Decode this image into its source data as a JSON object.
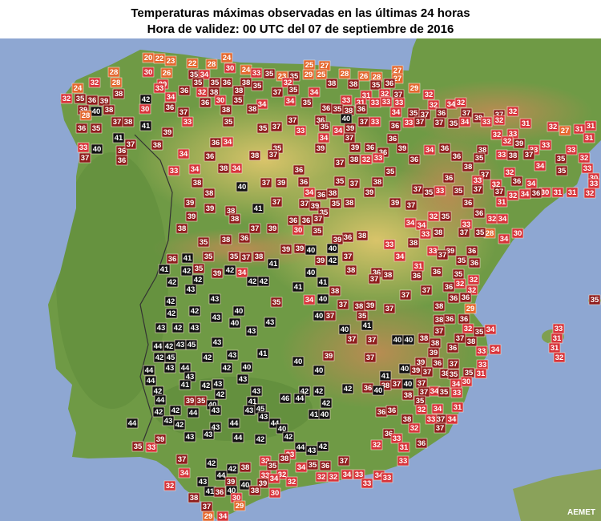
{
  "header": {
    "title": "Temperaturas máximas observadas en las últimas 24 horas",
    "subtitle": "Hora de validez: 00 UTC del 07 de septiembre de 2016"
  },
  "credit": "AEMET",
  "stations": [
    20,
    22,
    23,
    22,
    28,
    24,
    25,
    27,
    27,
    28,
    30,
    26,
    35,
    34,
    30,
    24,
    33,
    35,
    23,
    35,
    29,
    25,
    28,
    26,
    28,
    27,
    32,
    28,
    30,
    35,
    35,
    36,
    38,
    35,
    32,
    38,
    38,
    35,
    36,
    29,
    24,
    33,
    36,
    32,
    38,
    38,
    37,
    35,
    34,
    31,
    32,
    37,
    32,
    32,
    35,
    36,
    39,
    38,
    42,
    34,
    36,
    30,
    35,
    34,
    34,
    35,
    33,
    31,
    33,
    33,
    33,
    32,
    34,
    32,
    39,
    40,
    38,
    30,
    36,
    37,
    38,
    38,
    36,
    35,
    38,
    36,
    34,
    35,
    37,
    36,
    37,
    39,
    37,
    32,
    28,
    37,
    38,
    33,
    35,
    37,
    36,
    40,
    39,
    37,
    33,
    36,
    33,
    37,
    37,
    35,
    34,
    33,
    32,
    31,
    32,
    31,
    36,
    35,
    41,
    39,
    35,
    37,
    33,
    35,
    34,
    37,
    36,
    32,
    33,
    27,
    31,
    31,
    33,
    40,
    41,
    36,
    37,
    38,
    36,
    34,
    35,
    39,
    34,
    39,
    36,
    36,
    39,
    34,
    36,
    38,
    32,
    39,
    33,
    33,
    33,
    37,
    36,
    34,
    36,
    38,
    37,
    37,
    38,
    32,
    33,
    36,
    36,
    38,
    35,
    33,
    38,
    37,
    34,
    35,
    32,
    33,
    30,
    33,
    34,
    38,
    34,
    36,
    35,
    37,
    32,
    35,
    38,
    40,
    37,
    39,
    36,
    35,
    37,
    38,
    36,
    33,
    32,
    36,
    34,
    30,
    31,
    31,
    33,
    32,
    38,
    34,
    36,
    38,
    39,
    37,
    35,
    33,
    35,
    37,
    37,
    39,
    39,
    38,
    41,
    37,
    37,
    39,
    35,
    35,
    38,
    39,
    37,
    36,
    36,
    31,
    32,
    34,
    36,
    39,
    38,
    36,
    36,
    37,
    32,
    35,
    34,
    34,
    33,
    32,
    34,
    28,
    30,
    34,
    38,
    37,
    39,
    30,
    35,
    36,
    38,
    33,
    38,
    37,
    35,
    35,
    38,
    36,
    39,
    39,
    33,
    38,
    33,
    39,
    36,
    36,
    41,
    35,
    35,
    37,
    38,
    39,
    40,
    40,
    39,
    42,
    37,
    34,
    37,
    35,
    36,
    41,
    42,
    35,
    39,
    42,
    34,
    41,
    40,
    38,
    36,
    38,
    31,
    36,
    36,
    35,
    32,
    42,
    42,
    43,
    42,
    42,
    41,
    38,
    37,
    37,
    36,
    36,
    32,
    32,
    42,
    43,
    41,
    34,
    40,
    37,
    38,
    39,
    37,
    38,
    29,
    36,
    35,
    42,
    42,
    40,
    43,
    35,
    43,
    40,
    37,
    35,
    41,
    40,
    37,
    36,
    38,
    36,
    37,
    43,
    42,
    43,
    40,
    43,
    32,
    35,
    34,
    33,
    44,
    42,
    43,
    45,
    43,
    37,
    37,
    40,
    40,
    38,
    38,
    37,
    38,
    36,
    33,
    34,
    31,
    31,
    32,
    42,
    45,
    42,
    41,
    40,
    39,
    43,
    37,
    39,
    39,
    36,
    33,
    38,
    37,
    43,
    44,
    43,
    42,
    40,
    40,
    40,
    39,
    37,
    35,
    35,
    31,
    30,
    44,
    44,
    43,
    42,
    43,
    41,
    38,
    37,
    40,
    37,
    34,
    34,
    33,
    42,
    41,
    42,
    43,
    42,
    42,
    42,
    36,
    40,
    37,
    38,
    35,
    44,
    39,
    35,
    40,
    41,
    46,
    44,
    42,
    35,
    32,
    34,
    37,
    31,
    42,
    42,
    44,
    43,
    43,
    45,
    41,
    40,
    36,
    38,
    36,
    33,
    34,
    44,
    43,
    42,
    43,
    44,
    44,
    43,
    40,
    36,
    33,
    32,
    37,
    35,
    33,
    39,
    43,
    43,
    44,
    42,
    42,
    44,
    43,
    42,
    33,
    32,
    31,
    36,
    37,
    42,
    32,
    38,
    37,
    33,
    34,
    42,
    38,
    35,
    34,
    35,
    36,
    33,
    32,
    32,
    32,
    33,
    34,
    34,
    32,
    43,
    44,
    39,
    39,
    40,
    34,
    32,
    33,
    33,
    41,
    38,
    30,
    40,
    36,
    38,
    30,
    37,
    29,
    29,
    34
  ]
}
